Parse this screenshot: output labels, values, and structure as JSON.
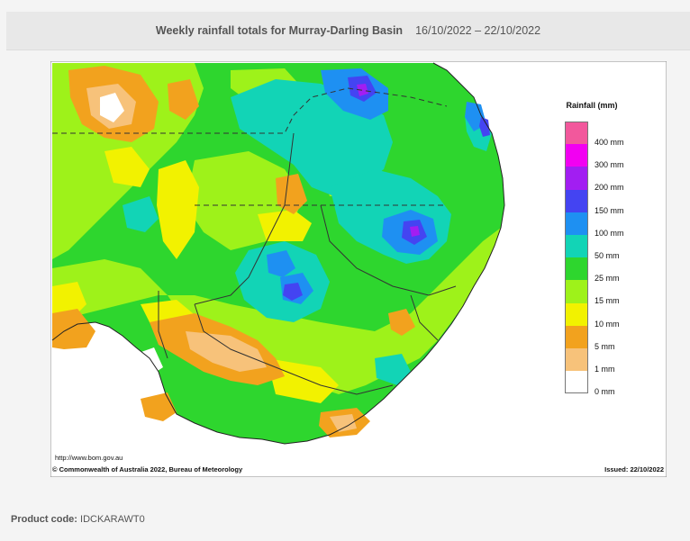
{
  "header": {
    "title": "Weekly rainfall totals for Murray-Darling Basin",
    "date_range": "16/10/2022 – 22/10/2022"
  },
  "legend": {
    "title": "Rainfall (mm)",
    "items": [
      {
        "label": "400 mm",
        "color": "#f2589c"
      },
      {
        "label": "300 mm",
        "color": "#f200f2"
      },
      {
        "label": "200 mm",
        "color": "#a21ef2"
      },
      {
        "label": "150 mm",
        "color": "#4444f2"
      },
      {
        "label": "100 mm",
        "color": "#1e90f2"
      },
      {
        "label": "50 mm",
        "color": "#12d4b6"
      },
      {
        "label": "25 mm",
        "color": "#2ed62e"
      },
      {
        "label": "15 mm",
        "color": "#9ef21a"
      },
      {
        "label": "10 mm",
        "color": "#f2f200"
      },
      {
        "label": "5 mm",
        "color": "#f2a21e"
      },
      {
        "label": "1 mm",
        "color": "#f7c27a"
      },
      {
        "label": "0 mm",
        "color": "#ffffff"
      }
    ]
  },
  "footer": {
    "url": "http://www.bom.gov.au",
    "copyright": "© Commonwealth of Australia 2022, Bureau of Meteorology",
    "issued": "Issued: 22/10/2022"
  },
  "product": {
    "label": "Product code:",
    "code": "IDCKARAWT0"
  }
}
